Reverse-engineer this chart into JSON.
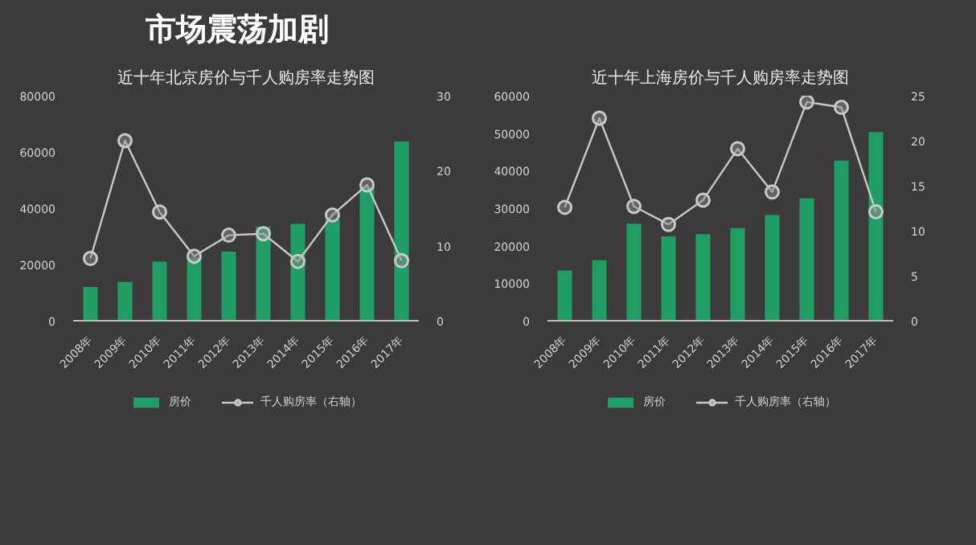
{
  "chart_data": [
    {
      "type": "bar",
      "title": "近十年北京房价与千人购房率走势图",
      "annotations": [
        "市场震荡加剧"
      ],
      "categories": [
        "2008年",
        "2009年",
        "2010年",
        "2011年",
        "2012年",
        "2013年",
        "2014年",
        "2015年",
        "2016年",
        "2017年"
      ],
      "series": [
        {
          "name": "房价",
          "color": "#1f9d63",
          "values": [
            12000,
            13800,
            21000,
            22500,
            24600,
            33500,
            34400,
            36000,
            47500,
            63700
          ]
        },
        {
          "name": "千人购房率（右轴）",
          "type": "line",
          "axis": "y2",
          "color": "#c8c8c8",
          "values": [
            8.3,
            24.0,
            14.5,
            8.6,
            11.4,
            11.6,
            7.9,
            14.1,
            18.1,
            8.0
          ]
        }
      ],
      "ylim": [
        0,
        80000
      ],
      "yticks": [
        0,
        20000,
        40000,
        60000,
        80000
      ],
      "y2lim": [
        0,
        30
      ],
      "y2ticks": [
        0,
        10,
        20,
        30
      ],
      "grid": false,
      "legend": "bottom",
      "marker": "circle",
      "line_style": "solid"
    },
    {
      "type": "bar",
      "title": "近十年上海房价与千人购房率走势图",
      "categories": [
        "2008年",
        "2009年",
        "2010年",
        "2011年",
        "2012年",
        "2013年",
        "2014年",
        "2015年",
        "2016年",
        "2017年"
      ],
      "series": [
        {
          "name": "房价",
          "color": "#1f9d63",
          "values": [
            13400,
            16100,
            25900,
            22500,
            23100,
            24700,
            28200,
            32600,
            42700,
            50300
          ]
        },
        {
          "name": "千人购房率（右轴）",
          "type": "line",
          "axis": "y2",
          "color": "#c8c8c8",
          "values": [
            12.6,
            22.5,
            12.7,
            10.7,
            13.4,
            19.1,
            14.3,
            24.3,
            23.7,
            12.1
          ]
        }
      ],
      "ylim": [
        0,
        60000
      ],
      "yticks": [
        0,
        10000,
        20000,
        30000,
        40000,
        50000,
        60000
      ],
      "y2lim": [
        0,
        25
      ],
      "y2ticks": [
        0,
        5,
        10,
        15,
        20,
        25
      ],
      "grid": false,
      "legend": "bottom",
      "marker": "circle",
      "line_style": "solid"
    }
  ]
}
